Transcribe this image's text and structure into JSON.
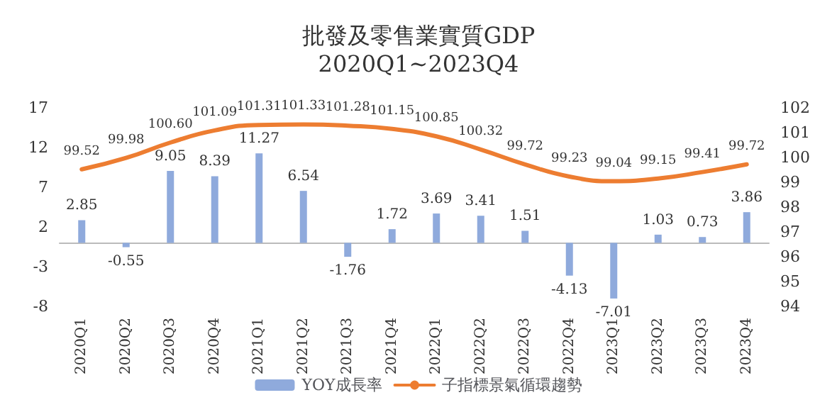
{
  "chart_data": {
    "type": "bar",
    "title": "批發及零售業實質GDP",
    "subtitle": "2020Q1~2023Q4",
    "categories": [
      "2020Q1",
      "2020Q2",
      "2020Q3",
      "2020Q4",
      "2021Q1",
      "2021Q2",
      "2021Q3",
      "2021Q4",
      "2022Q1",
      "2022Q2",
      "2022Q3",
      "2022Q4",
      "2023Q1",
      "2023Q2",
      "2023Q3",
      "2023Q4"
    ],
    "series": [
      {
        "name": "YOY成長率",
        "color": "#8faadc",
        "values": [
          2.85,
          -0.55,
          9.05,
          8.39,
          11.27,
          6.54,
          -1.76,
          1.72,
          3.69,
          3.41,
          1.51,
          -4.13,
          -7.01,
          1.03,
          0.73,
          3.86
        ]
      },
      {
        "name": "子指標景氣循環趨勢",
        "type": "line",
        "axis": "y2",
        "color": "#ed7d31",
        "value_labels": [
          "99.52",
          "99.98",
          "100.60",
          "101.09",
          "101.31",
          "101.33",
          "101.28",
          "101.15",
          "100.85",
          "100.32",
          "99.72",
          "99.23",
          "99.04",
          "99.15",
          "99.41",
          "99.72"
        ],
        "values": [
          99.52,
          99.98,
          100.6,
          101.09,
          101.31,
          101.33,
          101.28,
          101.15,
          100.85,
          100.32,
          99.72,
          99.23,
          99.04,
          99.15,
          99.41,
          99.72
        ]
      }
    ],
    "ylim": [
      -8,
      17
    ],
    "yticks": [
      -8,
      -3,
      2,
      7,
      12,
      17
    ],
    "y2lim": [
      94,
      102
    ],
    "y2ticks": [
      94,
      95,
      96,
      97,
      98,
      99,
      100,
      101,
      102
    ],
    "data_labels": true,
    "grid": false,
    "legend": "bottom",
    "marker": "none",
    "line_style": "solid"
  }
}
